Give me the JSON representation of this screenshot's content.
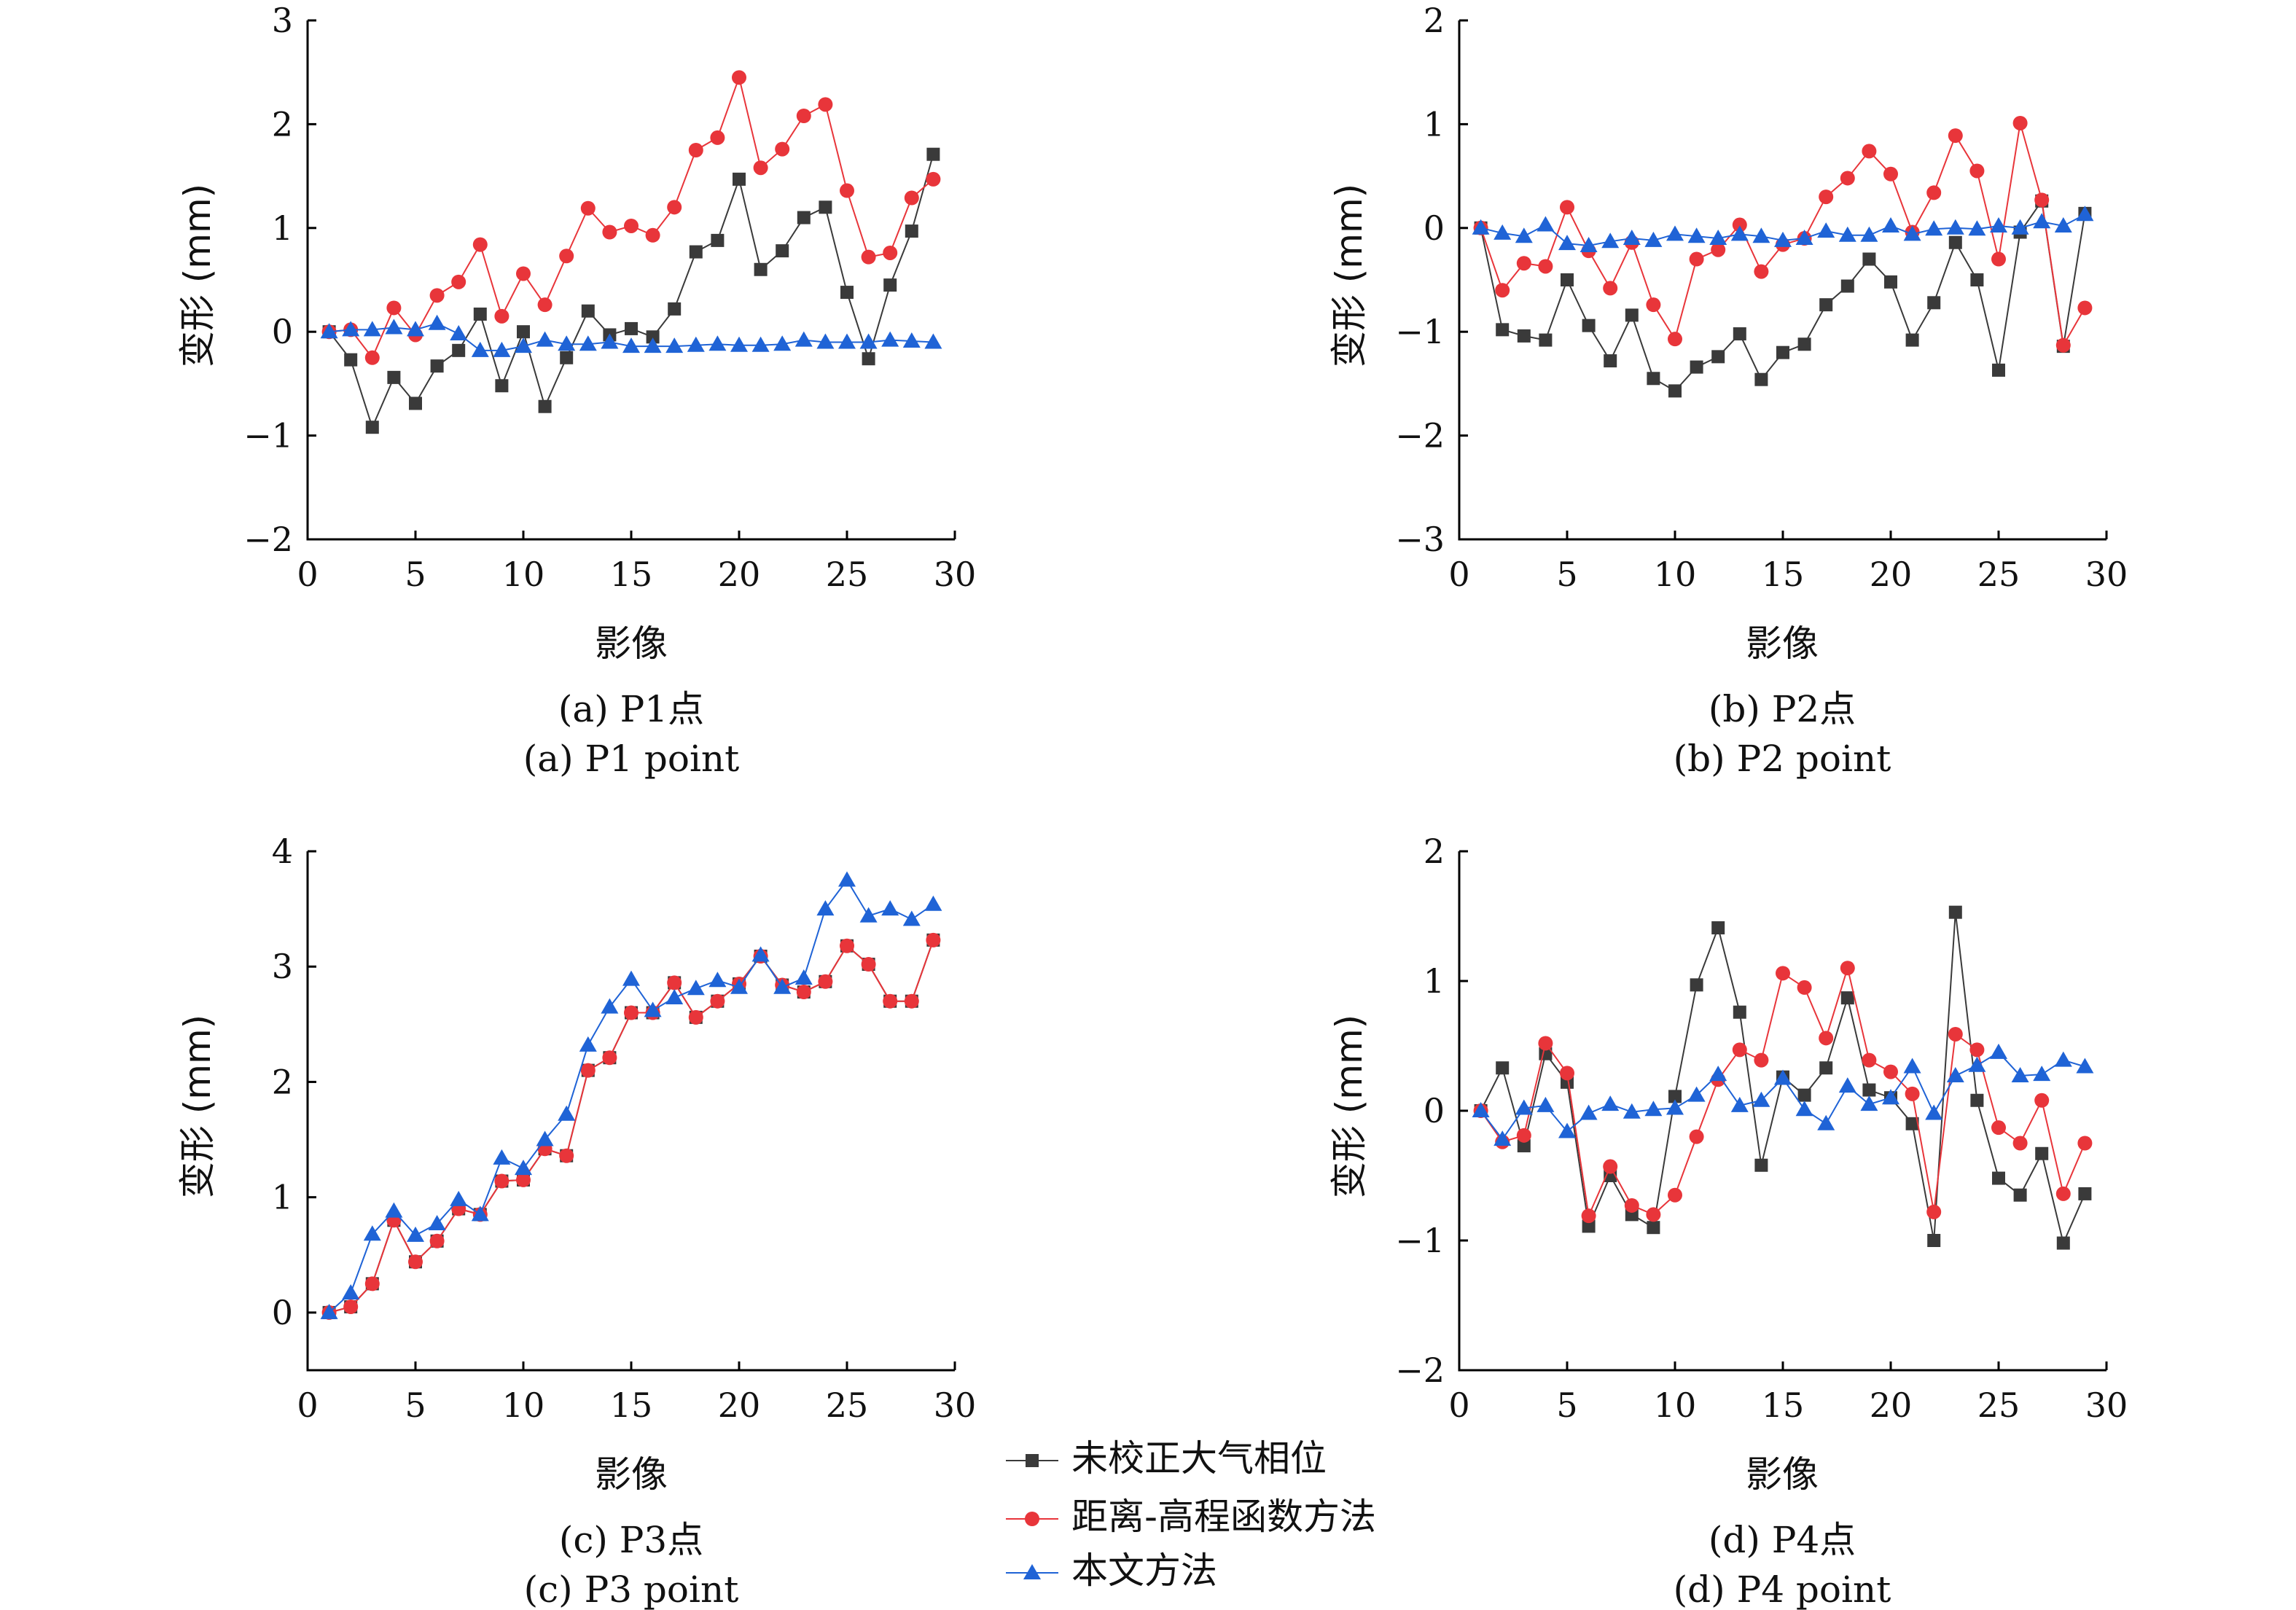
{
  "legend": [
    {
      "name": "未校正大气相位",
      "color": "#3a3a3a",
      "marker": "square"
    },
    {
      "name": "距离-高程函数方法",
      "color": "#e8353a",
      "marker": "circle"
    },
    {
      "name": "本文方法",
      "color": "#1f63d6",
      "marker": "triangle"
    }
  ],
  "chart_data": [
    {
      "type": "line",
      "caption_cn": "(a) P1点",
      "caption_en": "(a) P1 point",
      "xlabel": "影像",
      "ylabel": "变形 (mm)",
      "xlim": [
        0,
        30
      ],
      "ylim": [
        -2,
        3
      ],
      "xticks": [
        "0",
        "5",
        "10",
        "15",
        "20",
        "25",
        "30"
      ],
      "yticks": [
        "−2",
        "−1",
        "0",
        "1",
        "2",
        "3"
      ],
      "x": [
        1,
        2,
        3,
        4,
        5,
        6,
        7,
        8,
        9,
        10,
        11,
        12,
        13,
        14,
        15,
        16,
        17,
        18,
        19,
        20,
        21,
        22,
        23,
        24,
        25,
        26,
        27,
        28,
        29
      ],
      "series": [
        {
          "name": "未校正大气相位",
          "values": [
            0,
            -0.27,
            -0.92,
            -0.44,
            -0.69,
            -0.33,
            -0.18,
            0.17,
            -0.52,
            0.0,
            -0.72,
            -0.25,
            0.2,
            -0.03,
            0.03,
            -0.05,
            0.22,
            0.77,
            0.88,
            1.47,
            0.6,
            0.78,
            1.1,
            1.2,
            0.38,
            -0.26,
            0.45,
            0.97,
            1.71
          ]
        },
        {
          "name": "距离-高程函数方法",
          "values": [
            0,
            0.02,
            -0.25,
            0.23,
            -0.03,
            0.35,
            0.48,
            0.84,
            0.15,
            0.56,
            0.26,
            0.73,
            1.19,
            0.96,
            1.02,
            0.93,
            1.2,
            1.75,
            1.87,
            2.45,
            1.58,
            1.76,
            2.08,
            2.19,
            1.36,
            0.72,
            0.76,
            1.29,
            1.47
          ]
        },
        {
          "name": "本文方法",
          "values": [
            0,
            0.02,
            0.02,
            0.04,
            0.02,
            0.08,
            -0.02,
            -0.18,
            -0.18,
            -0.14,
            -0.08,
            -0.12,
            -0.12,
            -0.1,
            -0.14,
            -0.14,
            -0.14,
            -0.13,
            -0.12,
            -0.13,
            -0.13,
            -0.12,
            -0.08,
            -0.1,
            -0.1,
            -0.1,
            -0.08,
            -0.09,
            -0.1
          ]
        }
      ]
    },
    {
      "type": "line",
      "caption_cn": "(b) P2点",
      "caption_en": "(b) P2 point",
      "xlabel": "影像",
      "ylabel": "变形 (mm)",
      "xlim": [
        0,
        30
      ],
      "ylim": [
        -3,
        2
      ],
      "xticks": [
        "0",
        "5",
        "10",
        "15",
        "20",
        "25",
        "30"
      ],
      "yticks": [
        "−3",
        "−2",
        "−1",
        "0",
        "1",
        "2"
      ],
      "x": [
        1,
        2,
        3,
        4,
        5,
        6,
        7,
        8,
        9,
        10,
        11,
        12,
        13,
        14,
        15,
        16,
        17,
        18,
        19,
        20,
        21,
        22,
        23,
        24,
        25,
        26,
        27,
        28,
        29
      ],
      "series": [
        {
          "name": "未校正大气相位",
          "values": [
            0,
            -0.98,
            -1.04,
            -1.08,
            -0.5,
            -0.94,
            -1.28,
            -0.84,
            -1.45,
            -1.57,
            -1.34,
            -1.24,
            -1.02,
            -1.46,
            -1.2,
            -1.12,
            -0.74,
            -0.56,
            -0.3,
            -0.52,
            -1.08,
            -0.72,
            -0.14,
            -0.5,
            -1.37,
            -0.04,
            0.26,
            -1.14,
            0.14
          ]
        },
        {
          "name": "距离-高程函数方法",
          "values": [
            0,
            -0.6,
            -0.34,
            -0.37,
            0.2,
            -0.22,
            -0.58,
            -0.14,
            -0.74,
            -1.07,
            -0.3,
            -0.21,
            0.03,
            -0.42,
            -0.16,
            -0.1,
            0.3,
            0.48,
            0.74,
            0.52,
            -0.04,
            0.34,
            0.89,
            0.55,
            -0.3,
            1.01,
            0.27,
            -1.13,
            -0.77
          ]
        },
        {
          "name": "本文方法",
          "values": [
            0,
            -0.05,
            -0.08,
            0.03,
            -0.15,
            -0.17,
            -0.13,
            -0.1,
            -0.12,
            -0.06,
            -0.08,
            -0.1,
            -0.06,
            -0.08,
            -0.12,
            -0.1,
            -0.03,
            -0.07,
            -0.07,
            0.02,
            -0.06,
            -0.01,
            0.0,
            -0.01,
            0.02,
            0.0,
            0.06,
            0.02,
            0.13
          ]
        }
      ]
    },
    {
      "type": "line",
      "caption_cn": "(c) P3点",
      "caption_en": "(c) P3 point",
      "xlabel": "影像",
      "ylabel": "变形 (mm)",
      "xlim": [
        0,
        30
      ],
      "ylim": [
        -0.5,
        4
      ],
      "xticks": [
        "0",
        "5",
        "10",
        "15",
        "20",
        "25",
        "30"
      ],
      "yticks": [
        "0",
        "1",
        "2",
        "3",
        "4"
      ],
      "x": [
        1,
        2,
        3,
        4,
        5,
        6,
        7,
        8,
        9,
        10,
        11,
        12,
        13,
        14,
        15,
        16,
        17,
        18,
        19,
        20,
        21,
        22,
        23,
        24,
        25,
        26,
        27,
        28,
        29
      ],
      "series": [
        {
          "name": "未校正大气相位",
          "values": [
            0,
            0.05,
            0.25,
            0.8,
            0.44,
            0.62,
            0.9,
            0.85,
            1.14,
            1.15,
            1.42,
            1.36,
            2.1,
            2.21,
            2.6,
            2.6,
            2.86,
            2.56,
            2.7,
            2.85,
            3.09,
            2.84,
            2.78,
            2.87,
            3.18,
            3.02,
            2.7,
            2.7,
            3.23
          ]
        },
        {
          "name": "距离-高程函数方法",
          "values": [
            0,
            0.05,
            0.25,
            0.8,
            0.44,
            0.62,
            0.9,
            0.85,
            1.14,
            1.15,
            1.42,
            1.36,
            2.1,
            2.21,
            2.6,
            2.6,
            2.86,
            2.56,
            2.7,
            2.85,
            3.09,
            2.84,
            2.78,
            2.87,
            3.18,
            3.02,
            2.7,
            2.7,
            3.23
          ]
        },
        {
          "name": "本文方法",
          "values": [
            0,
            0.17,
            0.68,
            0.88,
            0.67,
            0.77,
            0.98,
            0.85,
            1.34,
            1.25,
            1.5,
            1.72,
            2.32,
            2.65,
            2.89,
            2.62,
            2.73,
            2.81,
            2.88,
            2.82,
            3.1,
            2.82,
            2.9,
            3.5,
            3.75,
            3.44,
            3.5,
            3.41,
            3.54
          ]
        }
      ]
    },
    {
      "type": "line",
      "caption_cn": "(d) P4点",
      "caption_en": "(d) P4 point",
      "xlabel": "影像",
      "ylabel": "变形 (mm)",
      "xlim": [
        0,
        30
      ],
      "ylim": [
        -2,
        2
      ],
      "xticks": [
        "0",
        "5",
        "10",
        "15",
        "20",
        "25",
        "30"
      ],
      "yticks": [
        "−2",
        "−1",
        "0",
        "1",
        "2"
      ],
      "x": [
        1,
        2,
        3,
        4,
        5,
        6,
        7,
        8,
        9,
        10,
        11,
        12,
        13,
        14,
        15,
        16,
        17,
        18,
        19,
        20,
        21,
        22,
        23,
        24,
        25,
        26,
        27,
        28,
        29
      ],
      "series": [
        {
          "name": "未校正大气相位",
          "values": [
            0,
            0.33,
            -0.27,
            0.44,
            0.22,
            -0.89,
            -0.5,
            -0.8,
            -0.9,
            0.11,
            0.97,
            1.41,
            0.76,
            -0.42,
            0.26,
            0.12,
            0.33,
            0.87,
            0.16,
            0.1,
            -0.1,
            -1.0,
            1.53,
            0.08,
            -0.52,
            -0.65,
            -0.33,
            -1.02,
            -0.64
          ]
        },
        {
          "name": "距离-高程函数方法",
          "values": [
            0,
            -0.24,
            -0.19,
            0.52,
            0.29,
            -0.81,
            -0.43,
            -0.73,
            -0.8,
            -0.65,
            -0.2,
            0.24,
            0.47,
            0.39,
            1.06,
            0.95,
            0.56,
            1.1,
            0.39,
            0.3,
            0.13,
            -0.78,
            0.59,
            0.47,
            -0.13,
            -0.25,
            0.08,
            -0.64,
            -0.25
          ]
        },
        {
          "name": "本文方法",
          "values": [
            0,
            -0.22,
            0.02,
            0.04,
            -0.16,
            -0.02,
            0.05,
            -0.01,
            0.01,
            0.02,
            0.12,
            0.28,
            0.04,
            0.08,
            0.25,
            0.01,
            -0.1,
            0.19,
            0.05,
            0.1,
            0.34,
            -0.02,
            0.27,
            0.35,
            0.45,
            0.27,
            0.28,
            0.39,
            0.34
          ]
        }
      ]
    }
  ]
}
